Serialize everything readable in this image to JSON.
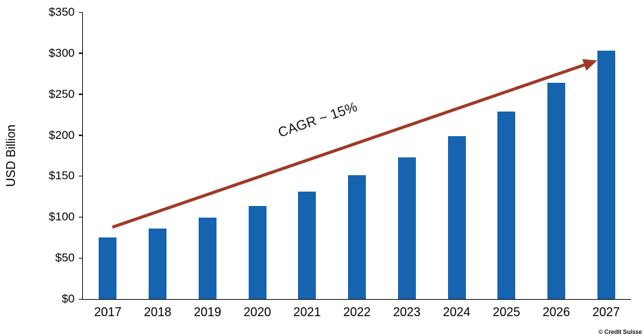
{
  "chart_data": {
    "type": "bar",
    "categories": [
      "2017",
      "2018",
      "2019",
      "2020",
      "2021",
      "2022",
      "2023",
      "2024",
      "2025",
      "2026",
      "2027"
    ],
    "values": [
      75,
      86,
      99,
      114,
      131,
      151,
      173,
      199,
      229,
      264,
      303
    ],
    "title": "",
    "xlabel": "",
    "ylabel": "USD Billion",
    "ylim": [
      0,
      350
    ],
    "ytick_labels": [
      "$0",
      "$50",
      "$100",
      "$150",
      "$200",
      "$250",
      "$300",
      "$350"
    ],
    "grid": false,
    "legend": false,
    "bar_color": "#1663b0",
    "arrow_color": "#9e3a26",
    "annotation": {
      "text": "CAGR ~ 15%",
      "type": "trend-arrow"
    }
  },
  "footer": {
    "source": "© Credit Suisse"
  }
}
